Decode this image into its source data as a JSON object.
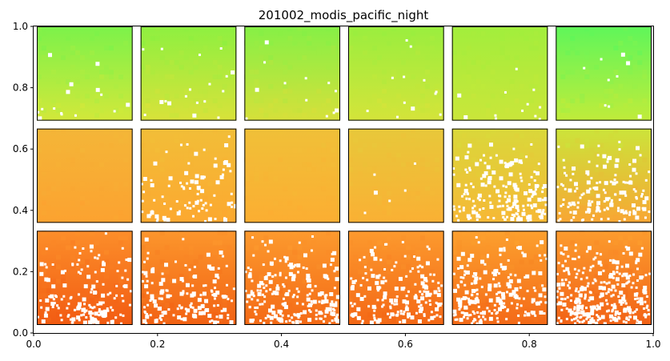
{
  "chart_data": {
    "type": "heatmap",
    "title": "201002_modis_pacific_night",
    "xlabel": "",
    "ylabel": "",
    "xlim": [
      0,
      1
    ],
    "ylim": [
      0,
      1
    ],
    "x_ticks": [
      "0.0",
      "0.2",
      "0.4",
      "0.6",
      "0.8",
      "1.0"
    ],
    "y_ticks": [
      "0.0",
      "0.2",
      "0.4",
      "0.6",
      "0.8",
      "1.0"
    ],
    "grid": false,
    "legend": "none",
    "colormap": "turbo",
    "panel_grid": {
      "rows": 3,
      "cols": 6
    },
    "panels": [
      {
        "row": 0,
        "col": 0,
        "top_color": "#7cf24a",
        "bottom_color": "#d2e83a",
        "missing": 0.005
      },
      {
        "row": 0,
        "col": 1,
        "top_color": "#8ef040",
        "bottom_color": "#d8e23a",
        "missing": 0.006
      },
      {
        "row": 0,
        "col": 2,
        "top_color": "#86f046",
        "bottom_color": "#d6e03a",
        "missing": 0.004
      },
      {
        "row": 0,
        "col": 3,
        "top_color": "#9aee3e",
        "bottom_color": "#d4e43a",
        "missing": 0.004
      },
      {
        "row": 0,
        "col": 4,
        "top_color": "#a2ee3c",
        "bottom_color": "#cae63a",
        "missing": 0.004
      },
      {
        "row": 0,
        "col": 5,
        "top_color": "#5ff65a",
        "bottom_color": "#c0ec3a",
        "missing": 0.003
      },
      {
        "row": 1,
        "col": 0,
        "top_color": "#f4b638",
        "bottom_color": "#fca230",
        "missing": 0.0
      },
      {
        "row": 1,
        "col": 1,
        "top_color": "#f2be38",
        "bottom_color": "#fca830",
        "missing": 0.03
      },
      {
        "row": 1,
        "col": 2,
        "top_color": "#f0c038",
        "bottom_color": "#fcae32",
        "missing": 0.0
      },
      {
        "row": 1,
        "col": 3,
        "top_color": "#e8c83a",
        "bottom_color": "#fab034",
        "missing": 0.002
      },
      {
        "row": 1,
        "col": 4,
        "top_color": "#dad83a",
        "bottom_color": "#f6b836",
        "missing": 0.06
      },
      {
        "row": 1,
        "col": 5,
        "top_color": "#cce43a",
        "bottom_color": "#f8a634",
        "missing": 0.05
      },
      {
        "row": 2,
        "col": 0,
        "top_color": "#fc8e2a",
        "bottom_color": "#f25b12",
        "missing": 0.05
      },
      {
        "row": 2,
        "col": 1,
        "top_color": "#fc962c",
        "bottom_color": "#f26214",
        "missing": 0.05
      },
      {
        "row": 2,
        "col": 2,
        "top_color": "#fc9a2e",
        "bottom_color": "#f46a16",
        "missing": 0.07
      },
      {
        "row": 2,
        "col": 3,
        "top_color": "#fc9a2e",
        "bottom_color": "#f46816",
        "missing": 0.06
      },
      {
        "row": 2,
        "col": 4,
        "top_color": "#fca02e",
        "bottom_color": "#f46a18",
        "missing": 0.07
      },
      {
        "row": 2,
        "col": 5,
        "top_color": "#fc9c2e",
        "bottom_color": "#f26216",
        "missing": 0.1
      }
    ],
    "missing_color": "#ffffff"
  }
}
